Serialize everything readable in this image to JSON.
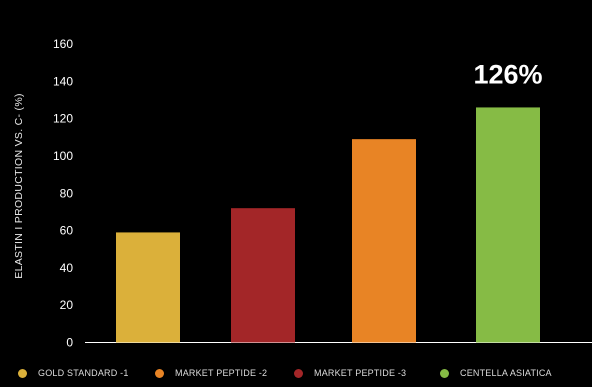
{
  "chart_data": {
    "type": "bar",
    "title": "",
    "xlabel": "",
    "ylabel": "ELASTIN I PRODUCTION VS. C- (%)",
    "ylim": [
      0,
      160
    ],
    "yticks": [
      0,
      20,
      40,
      60,
      80,
      100,
      120,
      140,
      160
    ],
    "grid": false,
    "legend_position": "bottom",
    "categories": [
      "GOLD STANDARD -1",
      "MARKET PEPTIDE -2",
      "MARKET PEPTIDE -3",
      "CENTELLA ASIATICA"
    ],
    "values": [
      59,
      72,
      109,
      126
    ],
    "colors": [
      "#dbb03a",
      "#e88425",
      "#a32628",
      "#86bb45"
    ],
    "bar_colors": [
      "#dbb03a",
      "#a32628",
      "#e88425",
      "#86bb45"
    ],
    "annotations": [
      {
        "category": "CENTELLA ASIATICA",
        "text": "126%"
      }
    ]
  },
  "colors": {
    "background": "#000000",
    "axis": "#ffffff",
    "text": "#ffffff"
  }
}
